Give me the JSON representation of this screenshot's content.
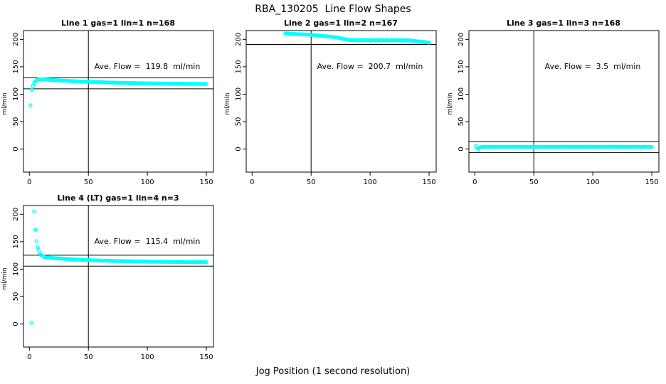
{
  "page": {
    "title": "RBA_130205  Line Flow Shapes",
    "xlabel": "Jog Position (1 second resolution)"
  },
  "chart_data": [
    {
      "type": "scatter",
      "title": "Line 1 gas=1 lin=1 n=168",
      "ylabel": "ml/min",
      "annotation": "Ave. Flow =  119.8  ml/min",
      "ave_flow": 119.8,
      "n": 168,
      "marker_color": "#00FFFF",
      "xlim": [
        -5,
        156
      ],
      "ylim": [
        -42,
        216
      ],
      "xticks": [
        0,
        50,
        100,
        150
      ],
      "yticks": [
        0,
        50,
        100,
        150,
        200
      ],
      "vline_x": 50,
      "hlines": [
        129.8,
        109.8
      ],
      "head_points": [],
      "series": {
        "x0": 1,
        "dx": 1,
        "y": [
          80,
          108,
          115,
          120.5,
          123.5,
          125.2,
          126.3,
          126.9,
          127.2,
          127.3,
          127.2,
          127,
          126.9,
          126.7,
          126.5,
          126.4,
          126.2,
          126.1,
          125.9,
          125.8,
          125.7,
          125.5,
          125.4,
          125.3,
          125.2,
          125.1,
          124.9,
          124.8,
          124.7,
          124.6,
          124.5,
          124.4,
          124.3,
          124.2,
          124,
          123.9,
          123.8,
          123.7,
          123.6,
          123.5,
          123.4,
          123.3,
          123.2,
          123.1,
          123,
          122.9,
          122.8,
          122.8,
          122.7,
          122.6,
          122.5,
          122.4,
          122.3,
          122.3,
          122.2,
          122.1,
          122.1,
          122,
          121.9,
          121.9,
          121.8,
          121.7,
          121.7,
          121.6,
          121.5,
          121.5,
          121.4,
          121.3,
          121.3,
          121.2,
          121.2,
          121.1,
          121.1,
          121,
          121,
          120.9,
          120.8,
          120.8,
          120.7,
          120.7,
          120.6,
          120.6,
          120.5,
          120.5,
          120.5,
          120.4,
          120.4,
          120.3,
          120.3,
          120.3,
          120.2,
          120.2,
          120.1,
          120.1,
          120.1,
          120,
          120,
          119.9,
          119.9,
          119.9,
          119.8,
          119.8,
          119.8,
          119.7,
          119.7,
          119.7,
          119.6,
          119.6,
          119.6,
          119.6,
          119.5,
          119.5,
          119.5,
          119.4,
          119.4,
          119.4,
          119.4,
          119.3,
          119.3,
          119.3,
          119.3,
          119.2,
          119.2,
          119.2,
          119.2,
          119.1,
          119.1,
          119.1,
          119.1,
          119.1,
          119,
          119,
          119,
          119,
          119,
          118.9,
          118.9,
          118.9,
          118.9,
          118.9,
          118.8,
          118.8,
          118.8,
          118.8,
          118.8,
          118.8,
          118.7,
          118.7,
          118.7,
          118.7
        ]
      }
    },
    {
      "type": "scatter",
      "title": "Line 2 gas=1 lin=2 n=167",
      "ylabel": "ml/min",
      "annotation": "Ave. Flow =  200.7  ml/min",
      "ave_flow": 200.7,
      "n": 167,
      "marker_color": "#00FFFF",
      "xlim": [
        -5,
        156
      ],
      "ylim": [
        -42,
        216
      ],
      "xticks": [
        0,
        50,
        100,
        150
      ],
      "yticks": [
        0,
        50,
        100,
        150,
        200
      ],
      "vline_x": 50,
      "hlines": [
        190.7
      ],
      "head_points": [],
      "series": {
        "x0": 28,
        "dx": 1,
        "y": [
          210.8,
          210.6,
          210.5,
          210.4,
          210.2,
          210.1,
          210,
          209.9,
          209.8,
          209.7,
          209.6,
          209.5,
          209.4,
          209.3,
          209.2,
          209.1,
          209,
          208.9,
          208.8,
          208.6,
          208.5,
          208.4,
          208.2,
          208,
          207.8,
          207.6,
          207.4,
          207.2,
          207,
          206.8,
          206.6,
          206.4,
          206.2,
          206,
          205.8,
          205.6,
          205.4,
          205.2,
          205,
          204.8,
          204.6,
          204.4,
          204.1,
          203.8,
          203.5,
          203.1,
          202.7,
          202.2,
          201.7,
          201.2,
          200.7,
          200.2,
          199.8,
          199.4,
          199.1,
          198.9,
          198.7,
          198.6,
          199,
          198.2,
          198.9,
          197.8,
          198.8,
          198,
          199.2,
          198.4,
          197.7,
          198.6,
          199,
          197.9,
          198.5,
          199.1,
          198,
          197.6,
          198.8,
          198.2,
          199,
          197.8,
          198.4,
          199.2,
          198,
          197.7,
          198.6,
          198.9,
          197.9,
          198.3,
          199,
          198.1,
          197.8,
          198.7,
          198.2,
          199.1,
          197.9,
          198.5,
          198.8,
          197.7,
          198.3,
          198.9,
          198,
          197.8,
          198.6,
          198.1,
          198.8,
          197.7,
          198.2,
          198.5,
          197.6,
          197.9,
          197.5,
          197.2,
          196.9,
          196.7,
          196.5,
          196.3,
          196.1,
          195.9,
          195.7,
          195.5,
          195.2,
          194.9,
          194.6,
          194.3,
          194.1
        ]
      }
    },
    {
      "type": "scatter",
      "title": "Line 3 gas=1 lin=3 n=168",
      "ylabel": "ml/min",
      "annotation": "Ave. Flow =  3.5  ml/min",
      "ave_flow": 3.5,
      "n": 168,
      "marker_color": "#00FFFF",
      "xlim": [
        -5,
        156
      ],
      "ylim": [
        -42,
        216
      ],
      "xticks": [
        0,
        50,
        100,
        150
      ],
      "yticks": [
        0,
        50,
        100,
        150,
        200
      ],
      "vline_x": 50,
      "hlines": [
        13.5,
        -6.5
      ],
      "head_points": [],
      "series": {
        "x0": 1,
        "dx": 1,
        "y": [
          5.5,
          1.2,
          0.3,
          2.2,
          3.4,
          3.9,
          4.1,
          4.2,
          4.1,
          4.2,
          4.1,
          4,
          4.2,
          4.1,
          4.3,
          4,
          4.1,
          4.2,
          4,
          4.1,
          4.1,
          4,
          4.2,
          4.1,
          4.3,
          4,
          4.1,
          4.2,
          4,
          4.1,
          4.1,
          4,
          4.2,
          4.1,
          4.3,
          4,
          4.1,
          4.2,
          4,
          4.1,
          4.1,
          4,
          4.2,
          4.1,
          4.3,
          4,
          4.1,
          4.2,
          4,
          4.1,
          4.1,
          4,
          4.2,
          4.1,
          4.3,
          4,
          4.1,
          4.2,
          4,
          4.1,
          4.1,
          4,
          4.2,
          4.1,
          4.3,
          4,
          4.1,
          4.2,
          4,
          4.1,
          4.1,
          4,
          4.2,
          4.1,
          4.3,
          4,
          4.1,
          4.2,
          4,
          4.1,
          4.1,
          4,
          4.2,
          4.1,
          4.3,
          4,
          4.1,
          4.2,
          4,
          4.1,
          4.1,
          4,
          4.2,
          4.1,
          4.3,
          4,
          4.1,
          4.2,
          4,
          4.1,
          4.1,
          4,
          4.2,
          4.1,
          4.3,
          4,
          4.1,
          4.2,
          4,
          4.1,
          4.1,
          4,
          4.2,
          4.1,
          4.3,
          4,
          4.1,
          4.2,
          4,
          4.1,
          4.1,
          4,
          4.2,
          4.1,
          4.3,
          4,
          4.1,
          4.2,
          4,
          4.1,
          4.1,
          4,
          4.2,
          4.1,
          4.3,
          4,
          4.1,
          4.2,
          4,
          4.1,
          4.1,
          4,
          4.2,
          4.1,
          4.3,
          4,
          4.1,
          4.2,
          4,
          4
        ]
      }
    },
    {
      "type": "scatter",
      "title": "Line 4 (LT) gas=1 lin=4 n=3",
      "ylabel": "ml/min",
      "annotation": "Ave. Flow =  115.4  ml/min",
      "ave_flow": 115.4,
      "n": 3,
      "marker_color": "#00FFFF",
      "xlim": [
        -5,
        156
      ],
      "ylim": [
        -42,
        216
      ],
      "xticks": [
        0,
        50,
        100,
        150
      ],
      "yticks": [
        0,
        50,
        100,
        150,
        200
      ],
      "vline_x": 50,
      "hlines": [
        125.4,
        105.4
      ],
      "head_points": [
        [
          2,
          2
        ]
      ],
      "series": {
        "x0": 4,
        "dx": 1,
        "y": [
          205,
          172,
          151,
          140,
          133.5,
          129,
          126,
          124,
          122.7,
          121.7,
          121.5,
          121.3,
          121.1,
          120.9,
          120.7,
          120.5,
          120.3,
          120.1,
          119.9,
          119.8,
          119.6,
          119.5,
          119.3,
          119.2,
          119,
          118.9,
          118.8,
          118.6,
          118.5,
          118.4,
          118.2,
          118.1,
          118,
          117.9,
          117.7,
          117.6,
          117.5,
          117.4,
          117.3,
          117.2,
          117.1,
          117,
          116.9,
          116.8,
          116.7,
          116.6,
          116.5,
          116.4,
          116.3,
          116.3,
          116.2,
          116.1,
          116,
          115.9,
          115.9,
          115.8,
          115.7,
          115.7,
          115.6,
          115.5,
          115.5,
          115.4,
          115.3,
          115.3,
          115.2,
          115.2,
          115.1,
          115,
          115,
          114.9,
          114.9,
          114.8,
          114.8,
          114.7,
          114.7,
          114.6,
          114.6,
          114.5,
          114.5,
          114.5,
          114.4,
          114.4,
          114.3,
          114.3,
          114.2,
          114.2,
          114.2,
          114.1,
          114.1,
          114,
          114,
          114,
          113.9,
          113.9,
          113.9,
          113.8,
          113.8,
          113.8,
          113.7,
          113.7,
          113.7,
          113.6,
          113.6,
          113.6,
          113.6,
          113.5,
          113.5,
          113.5,
          113.4,
          113.4,
          113.4,
          113.4,
          113.3,
          113.3,
          113.3,
          113.3,
          113.3,
          113.2,
          113.2,
          113.2,
          113.2,
          113.2,
          113.1,
          113.1,
          113.1,
          113.1,
          113.1,
          113,
          113,
          113,
          113,
          113,
          113,
          112.9,
          112.9,
          112.9,
          112.9,
          112.9,
          112.9,
          112.8,
          112.8,
          112.8,
          112.8,
          112.8,
          112.8,
          112.7,
          112.7
        ]
      }
    }
  ]
}
